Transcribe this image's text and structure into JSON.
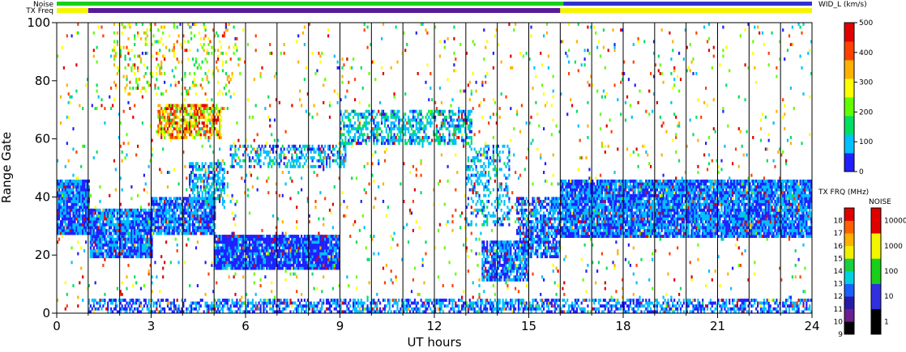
{
  "chart_data": {
    "type": "heatmap",
    "parameter_label": "WID_L (km/s)",
    "xlabel": "UT hours",
    "ylabel": "Range Gate",
    "xlim": [
      0,
      24
    ],
    "ylim": [
      0,
      100
    ],
    "x_ticks": [
      "0",
      "3",
      "6",
      "9",
      "12",
      "15",
      "18",
      "21",
      "24"
    ],
    "x_tick_values": [
      0,
      3,
      6,
      9,
      12,
      15,
      18,
      21,
      24
    ],
    "y_ticks": [
      "0",
      "20",
      "40",
      "60",
      "80",
      "100"
    ],
    "y_tick_values": [
      0,
      20,
      40,
      60,
      80,
      100
    ],
    "hour_gridlines": [
      1,
      2,
      3,
      4,
      5,
      6,
      7,
      8,
      9,
      10,
      11,
      12,
      13,
      14,
      15,
      16,
      17,
      18,
      19,
      20,
      21,
      22,
      23
    ],
    "top_bars": {
      "noise_label": "Noise",
      "txfreq_label": "TX Freq",
      "noise_segments": [
        {
          "start": 0,
          "end": 16.1,
          "color": "#18d018"
        },
        {
          "start": 16.1,
          "end": 24,
          "color": "#3030d0"
        }
      ],
      "txfreq_segments": [
        {
          "start": 0,
          "end": 1.0,
          "color": "#f5f500"
        },
        {
          "start": 1.0,
          "end": 16.0,
          "color": "#5a1a9a"
        },
        {
          "start": 16.0,
          "end": 24,
          "color": "#f5f500"
        }
      ]
    },
    "width_colorbar": {
      "ticks": [
        "0",
        "100",
        "200",
        "300",
        "400",
        "500"
      ],
      "tick_values": [
        0,
        100,
        200,
        300,
        400,
        500
      ],
      "range": [
        0,
        500
      ],
      "colors": [
        "#2020ff",
        "#00c0ff",
        "#00e060",
        "#60ff00",
        "#ffff00",
        "#ffb000",
        "#ff4000",
        "#e00000"
      ]
    },
    "freq_colorbar": {
      "label": "TX FRQ (MHz)",
      "ticks": [
        "9",
        "10",
        "11",
        "12",
        "13",
        "14",
        "15",
        "16",
        "17",
        "18"
      ],
      "colors": [
        "#000000",
        "#6a2090",
        "#2a1aaa",
        "#1a60ff",
        "#00d0e0",
        "#18d040",
        "#f0f000",
        "#ffb000",
        "#ff6000",
        "#e00000"
      ]
    },
    "noise_colorbar": {
      "label": "NOISE",
      "ticks": [
        "1",
        "10",
        "100",
        "1000",
        "10000"
      ],
      "colors": [
        "#000000",
        "#3030e0",
        "#18d018",
        "#f5f500",
        "#e00000"
      ]
    },
    "scatter_regions": [
      {
        "t0": 0.0,
        "t1": 1.05,
        "g0": 27,
        "g1": 46,
        "density": 0.95,
        "base": 0.05,
        "spread": 0.15
      },
      {
        "t0": 1.05,
        "t1": 3.0,
        "g0": 19,
        "g1": 36,
        "density": 0.9,
        "base": 0.05,
        "spread": 0.15
      },
      {
        "t0": 3.0,
        "t1": 5.0,
        "g0": 27,
        "g1": 40,
        "density": 0.85,
        "base": 0.05,
        "spread": 0.15
      },
      {
        "t0": 4.2,
        "t1": 5.3,
        "g0": 38,
        "g1": 52,
        "density": 0.6,
        "base": 0.08,
        "spread": 0.2
      },
      {
        "t0": 5.0,
        "t1": 9.0,
        "g0": 15,
        "g1": 27,
        "density": 0.95,
        "base": 0.04,
        "spread": 0.12
      },
      {
        "t0": 5.5,
        "t1": 9.2,
        "g0": 50,
        "g1": 58,
        "density": 0.45,
        "base": 0.08,
        "spread": 0.2
      },
      {
        "t0": 9.0,
        "t1": 13.2,
        "g0": 58,
        "g1": 70,
        "density": 0.55,
        "base": 0.08,
        "spread": 0.25
      },
      {
        "t0": 13.0,
        "t1": 14.4,
        "g0": 30,
        "g1": 58,
        "density": 0.35,
        "base": 0.08,
        "spread": 0.2
      },
      {
        "t0": 13.5,
        "t1": 15.0,
        "g0": 11,
        "g1": 25,
        "density": 0.8,
        "base": 0.05,
        "spread": 0.15
      },
      {
        "t0": 14.6,
        "t1": 16.0,
        "g0": 19,
        "g1": 40,
        "density": 0.7,
        "base": 0.05,
        "spread": 0.15
      },
      {
        "t0": 16.0,
        "t1": 24.0,
        "g0": 26,
        "g1": 46,
        "density": 0.9,
        "base": 0.05,
        "spread": 0.15
      },
      {
        "t0": 1.0,
        "t1": 24.0,
        "g0": 0,
        "g1": 5,
        "density": 0.55,
        "base": 0.05,
        "spread": 0.15
      },
      {
        "t0": 3.2,
        "t1": 5.2,
        "g0": 60,
        "g1": 72,
        "density": 0.7,
        "base": 0.35,
        "spread": 0.6
      },
      {
        "t0": 1.8,
        "t1": 5.8,
        "g0": 75,
        "g1": 100,
        "density": 0.12,
        "base": 0.3,
        "spread": 0.5
      },
      {
        "t0": 0.0,
        "t1": 24.0,
        "g0": 0,
        "g1": 100,
        "density": 0.035,
        "base": 0.05,
        "spread": 0.9
      }
    ]
  }
}
